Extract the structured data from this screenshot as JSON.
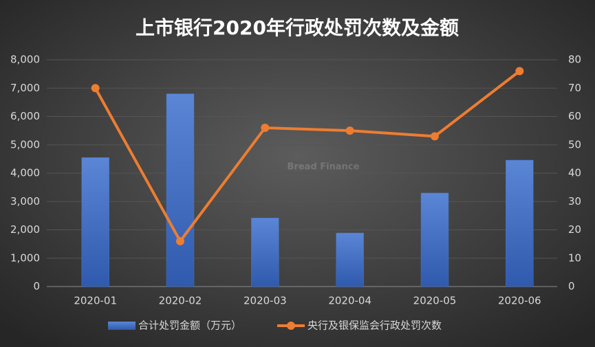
{
  "chart_data": {
    "type": "bar-line",
    "title": "上市银行2020年行政处罚次数及金额",
    "watermark": "Bread Finance",
    "categories": [
      "2020-01",
      "2020-02",
      "2020-03",
      "2020-04",
      "2020-05",
      "2020-06"
    ],
    "series": [
      {
        "name": "合计处罚金额（万元）",
        "type": "bar",
        "color": "#4472c4",
        "values": [
          4550,
          6800,
          2420,
          1890,
          3300,
          4460
        ]
      },
      {
        "name": "央行及银保监会行政处罚次数",
        "type": "line",
        "axis": "y2",
        "color": "#ed7d31",
        "values": [
          70,
          16,
          56,
          55,
          53,
          76
        ]
      }
    ],
    "ylim": [
      0,
      8000
    ],
    "yticks": [
      0,
      {
        "value": 1000,
        "label": "1,000"
      },
      {
        "value": 2000,
        "label": "2,000"
      },
      {
        "value": 3000,
        "label": "3,000"
      },
      {
        "value": 4000,
        "label": "4,000"
      },
      {
        "value": 5000,
        "label": "5,000"
      },
      {
        "value": 6000,
        "label": "6,000"
      },
      {
        "value": 7000,
        "label": "7,000"
      },
      {
        "value": 8000,
        "label": "8,000"
      }
    ],
    "y2lim": [
      0,
      80
    ],
    "y2ticks": [
      0,
      10,
      20,
      30,
      40,
      50,
      60,
      70,
      80
    ],
    "grid": true,
    "legend": "bottom"
  }
}
